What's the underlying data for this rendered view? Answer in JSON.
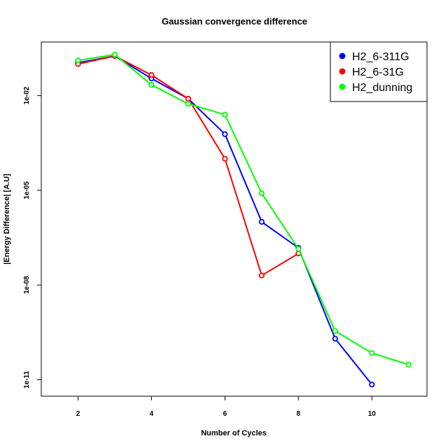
{
  "chart_data": {
    "type": "line",
    "title": "Gaussian convergence difference",
    "xlabel": "Number of Cycles",
    "ylabel": "|Energy Difference| [A.U]",
    "yscale": "log",
    "xlim": [
      1,
      11.5
    ],
    "ylim": [
      3e-12,
      0.5
    ],
    "xticks": [
      2,
      4,
      6,
      8,
      10
    ],
    "yticks": [
      {
        "value": 0.01,
        "label": "1e-02"
      },
      {
        "value": 1e-05,
        "label": "1e-05"
      },
      {
        "value": 1e-08,
        "label": "1e-08"
      },
      {
        "value": 1e-11,
        "label": "1e-11"
      }
    ],
    "grid": false,
    "legend": "top-right",
    "series": [
      {
        "name": "H2_6-311G",
        "color": "#0000ff",
        "x": [
          2,
          3,
          4,
          5,
          6,
          7,
          8,
          9,
          10
        ],
        "y": [
          0.11,
          0.18,
          0.035,
          0.008,
          0.0006,
          1e-06,
          1.5e-07,
          2e-10,
          7e-12
        ]
      },
      {
        "name": "H2_6-31G",
        "color": "#ff0000",
        "x": [
          2,
          3,
          4,
          5,
          6,
          7,
          8
        ],
        "y": [
          0.1,
          0.18,
          0.045,
          0.008,
          0.0001,
          2e-08,
          1e-07
        ]
      },
      {
        "name": "H2_dunning",
        "color": "#00ff00",
        "x": [
          2,
          3,
          4,
          5,
          6,
          7,
          8,
          9,
          10,
          11
        ],
        "y": [
          0.13,
          0.2,
          0.022,
          0.0055,
          0.0025,
          8e-06,
          1.4e-07,
          3.5e-10,
          7e-11,
          3e-11
        ]
      }
    ]
  }
}
